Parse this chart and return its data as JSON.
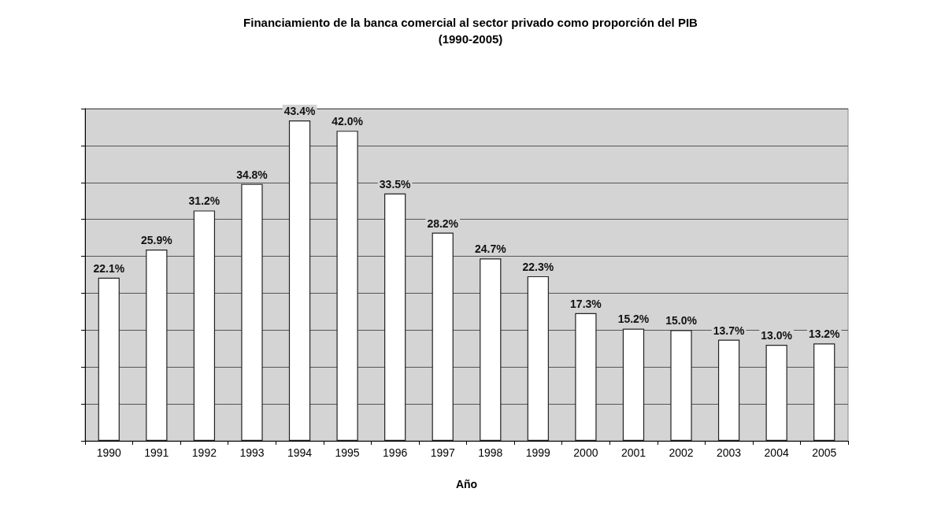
{
  "chart_data": {
    "type": "bar",
    "title": "Financiamiento de la banca comercial al sector privado como proporción del PIB",
    "subtitle": "(1990-2005)",
    "xlabel": "Año",
    "categories": [
      "1990",
      "1991",
      "1992",
      "1993",
      "1994",
      "1995",
      "1996",
      "1997",
      "1998",
      "1999",
      "2000",
      "2001",
      "2002",
      "2003",
      "2004",
      "2005"
    ],
    "values": [
      22.1,
      25.9,
      31.2,
      34.8,
      43.4,
      42.0,
      33.5,
      28.2,
      24.7,
      22.3,
      17.3,
      15.2,
      15.0,
      13.7,
      13.0,
      13.2
    ],
    "value_labels": [
      "22.1%",
      "25.9%",
      "31.2%",
      "34.8%",
      "43.4%",
      "42.0%",
      "33.5%",
      "28.2%",
      "24.7%",
      "22.3%",
      "17.3%",
      "15.2%",
      "15.0%",
      "13.7%",
      "13.0%",
      "13.2%"
    ],
    "color": "#ffffff",
    "ylim": [
      0,
      45
    ],
    "yticks": [
      {
        "value": 0,
        "label": null
      },
      {
        "value": 5,
        "label": null
      },
      {
        "value": 10,
        "label": null
      },
      {
        "value": 15,
        "label": null
      },
      {
        "value": 20,
        "label": null
      },
      {
        "value": 25,
        "label": null
      },
      {
        "value": 30,
        "label": null
      },
      {
        "value": 35,
        "label": null
      },
      {
        "value": 40,
        "label": null
      },
      {
        "value": 45,
        "label": null
      }
    ],
    "tick_labels": "x",
    "grid": "y"
  }
}
